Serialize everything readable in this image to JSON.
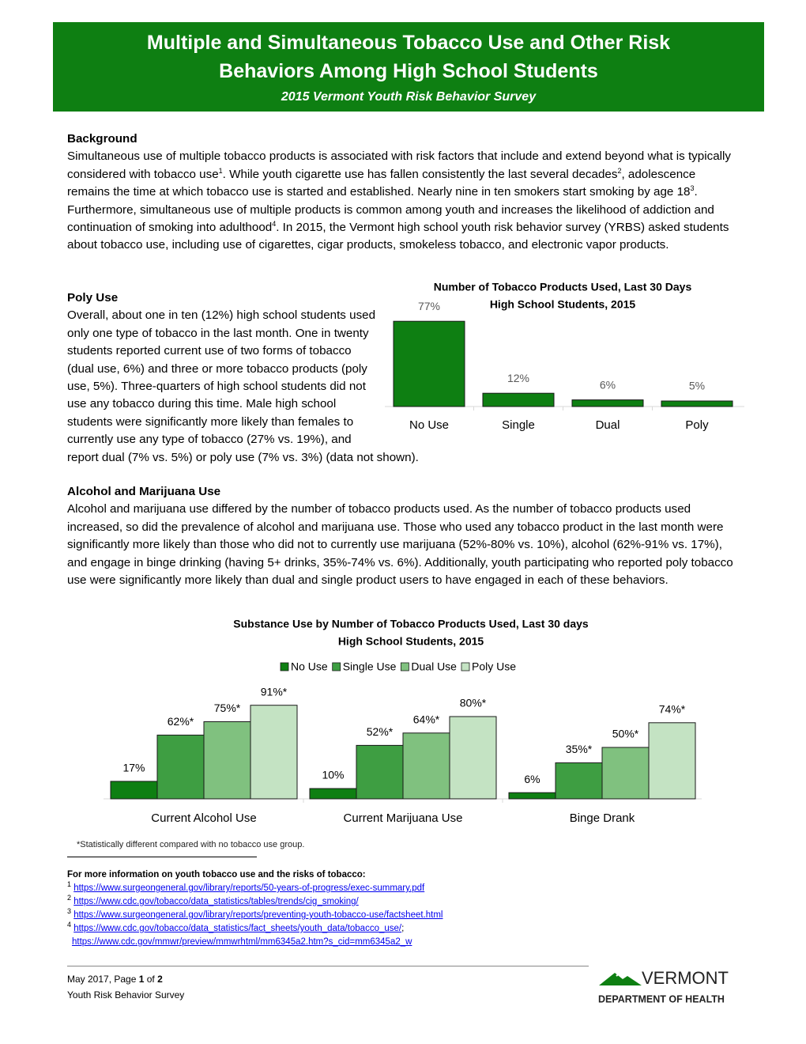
{
  "header": {
    "title_lines": [
      "Multiple and Simultaneous Tobacco Use and Other Risk",
      "Behaviors Among High School Students"
    ],
    "subtitle": "2015 Vermont Youth Risk Behavior Survey"
  },
  "background": {
    "heading": "Background",
    "body": [
      {
        "text": "Simultaneous use of multiple tobacco products is associated with risk factors that include and extend beyond what is typically considered with tobacco use",
        "sup": "1"
      },
      {
        "text": ". While youth cigarette use has fallen consistently the last several decades",
        "sup": "2"
      },
      {
        "text": ", adolescence remains the time at which tobacco use is started and established. Nearly nine in ten smokers start smoking by age 18",
        "sup": "3"
      },
      {
        "text": ". Furthermore, simultaneous use of multiple products is common among youth and increases the likelihood of addiction and continuation of smoking into adulthood",
        "sup": "4"
      },
      {
        "text": ". In 2015, the Vermont high school youth risk behavior survey (YRBS) asked students about tobacco use, including use of cigarettes, cigar products, smokeless tobacco, and electronic vapor products."
      }
    ]
  },
  "poly_use": {
    "heading": "Poly Use",
    "body": "Overall, about one in ten (12%) high school students used only one type of tobacco in the last month. One in twenty students reported current use of two forms of tobacco (dual use, 6%) and three or more tobacco products (poly use, 5%). Three-quarters of high school students did not use any tobacco during this time. Male high school students were significantly more likely than females to currently use any type of tobacco (27% vs. 19%), and report dual (7% vs. 5%) or poly use (7% vs. 3%) (data not shown)."
  },
  "alcohol": {
    "heading": "Alcohol and Marijuana Use",
    "body": "Alcohol and marijuana use differed by the number of tobacco products used. As the number of tobacco products used increased, so did the prevalence of alcohol and marijuana use. Those who used any tobacco product in the last month were significantly more likely than those who did not to currently use marijuana (52%-80% vs. 10%), alcohol (62%-91% vs. 17%), and engage in binge drinking (having 5+ drinks, 35%-74% vs. 6%). Additionally, youth participating who reported poly tobacco use were significantly more likely than dual and single product users to have engaged in each of these behaviors."
  },
  "chart_data": [
    {
      "type": "bar",
      "title": "Number of Tobacco Products Used, Last 30 Days",
      "subtitle": "High School Students, 2015",
      "categories": [
        "No Use",
        "Single",
        "Dual",
        "Poly"
      ],
      "values": [
        77,
        12,
        6,
        5
      ],
      "value_labels": [
        "77%",
        "12%",
        "6%",
        "5%"
      ],
      "color": "#0e7f12"
    },
    {
      "type": "bar",
      "title": "Substance Use by Number of Tobacco Products Used, Last 30 days",
      "subtitle": "High School Students, 2015",
      "categories": [
        "Current Alcohol Use",
        "Current Marijuana Use",
        "Binge Drank"
      ],
      "series": [
        {
          "name": "No Use",
          "color": "#0e7f12",
          "values": [
            17,
            10,
            6
          ],
          "value_labels": [
            "17%",
            "10%",
            "6%"
          ]
        },
        {
          "name": "Single Use",
          "color": "#3e9e42",
          "values": [
            62,
            52,
            35
          ],
          "value_labels": [
            "62%*",
            "52%*",
            "35%*"
          ]
        },
        {
          "name": "Dual Use",
          "color": "#80c17f",
          "values": [
            75,
            64,
            50
          ],
          "value_labels": [
            "75%*",
            "64%*",
            "50%*"
          ]
        },
        {
          "name": "Poly Use",
          "color": "#c4e3c3",
          "values": [
            91,
            80,
            74
          ],
          "value_labels": [
            "91%*",
            "80%*",
            "74%*"
          ]
        }
      ],
      "legend": "top"
    }
  ],
  "footnote": "*Statistically different compared with no tobacco use group.",
  "references": {
    "heading": "For more information on youth tobacco use and the risks of tobacco:",
    "items": [
      {
        "number": "1",
        "links": [
          "https://www.surgeongeneral.gov/library/reports/50-years-of-progress/exec-summary.pdf"
        ]
      },
      {
        "number": "2",
        "links": [
          "https://www.cdc.gov/tobacco/data_statistics/tables/trends/cig_smoking/"
        ]
      },
      {
        "number": "3",
        "links": [
          "https://www.surgeongeneral.gov/library/reports/preventing-youth-tobacco-use/factsheet.html"
        ]
      },
      {
        "number": "4",
        "links": [
          "https://www.cdc.gov/tobacco/data_statistics/fact_sheets/youth_data/tobacco_use/",
          "https://www.cdc.gov/mmwr/preview/mmwrhtml/mm6345a2.htm?s_cid=mm6345a2_w"
        ],
        "separator": ";"
      }
    ]
  },
  "footer": {
    "page_parts": [
      "May 2017, Page ",
      "1",
      " of ",
      "2"
    ],
    "survey": "Youth Risk Behavior Survey",
    "logo": {
      "name": "VERMONT",
      "department": "DEPARTMENT OF HEALTH"
    }
  }
}
